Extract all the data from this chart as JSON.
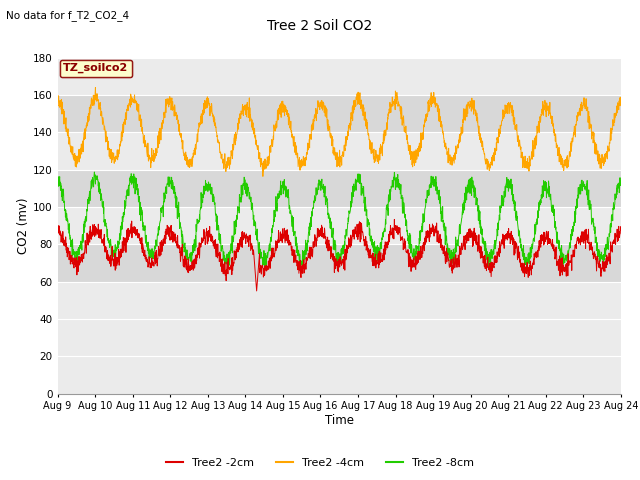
{
  "title": "Tree 2 Soil CO2",
  "no_data_text": "No data for f_T2_CO2_4",
  "xlabel": "Time",
  "ylabel": "CO2 (mv)",
  "ylim": [
    0,
    180
  ],
  "yticks": [
    0,
    20,
    40,
    60,
    80,
    100,
    120,
    140,
    160,
    180
  ],
  "xlim_days": [
    0,
    15
  ],
  "x_tick_labels": [
    "Aug 9",
    "Aug 10",
    "Aug 11",
    "Aug 12",
    "Aug 13",
    "Aug 14",
    "Aug 15",
    "Aug 16",
    "Aug 17",
    "Aug 18",
    "Aug 19",
    "Aug 20",
    "Aug 21",
    "Aug 22",
    "Aug 23",
    "Aug 24"
  ],
  "bg_color": "#ffffff",
  "plot_bg_light": "#ebebeb",
  "plot_bg_dark": "#d8d8d8",
  "grid_color": "#ffffff",
  "legend_label": "TZ_soilco2",
  "legend_bg": "#ffffcc",
  "legend_border": "#8b0000",
  "series": [
    {
      "label": "Tree2 -2cm",
      "color": "#dd0000"
    },
    {
      "label": "Tree2 -4cm",
      "color": "#ffa500"
    },
    {
      "label": "Tree2 -8cm",
      "color": "#22cc00"
    }
  ],
  "n_points": 2160,
  "days": 15
}
